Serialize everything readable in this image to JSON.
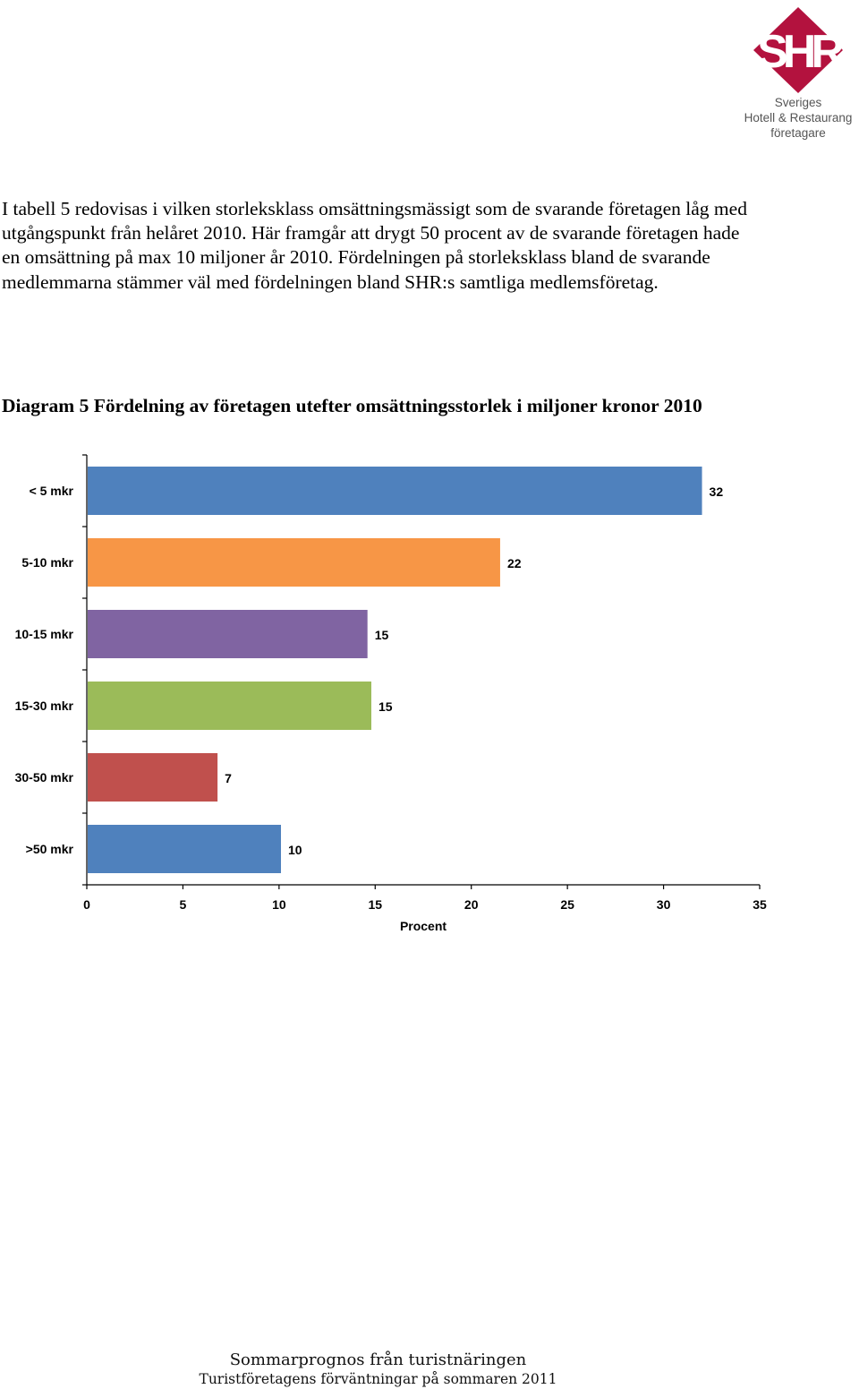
{
  "logo": {
    "mark": "SHR",
    "brand_color": "#b3123e",
    "line1": "Sveriges",
    "line2": "Hotell & Restaurang",
    "line3": "företagare"
  },
  "intro_text": "I tabell 5 redovisas i vilken storleksklass omsättningsmässigt som de svarande företagen låg med utgångspunkt från helåret 2010. Här framgår att drygt 50 procent av de svarande företagen hade en omsättning på max 10 miljoner år 2010. Fördelningen på storleksklass bland de svarande medlemmarna stämmer väl med fördelningen bland SHR:s samtliga medlemsföretag.",
  "diagram_title": "Diagram 5 Fördelning av företagen utefter omsättningsstorlek i miljoner kronor 2010",
  "chart_data": {
    "type": "bar",
    "orientation": "horizontal",
    "categories": [
      "< 5 mkr",
      "5-10 mkr",
      "10-15 mkr",
      "15-30 mkr",
      "30-50 mkr",
      ">50 mkr"
    ],
    "values": [
      32,
      21.5,
      14.6,
      14.8,
      6.8,
      10.1
    ],
    "value_labels": [
      "32",
      "22",
      "15",
      "15",
      "7",
      "10"
    ],
    "colors": [
      "#4f81bd",
      "#f79646",
      "#8064a2",
      "#9bbb59",
      "#c0504d",
      "#4f81bd"
    ],
    "xlabel": "Procent",
    "xlim": [
      0,
      35
    ],
    "xticks": [
      "0",
      "5",
      "10",
      "15",
      "20",
      "25",
      "30",
      "35"
    ],
    "grid": false,
    "legend": "none"
  },
  "footer": {
    "line1": "Sommarprognos från turistnäringen",
    "line2": "Turistföretagens förväntningar på sommaren 2011"
  }
}
